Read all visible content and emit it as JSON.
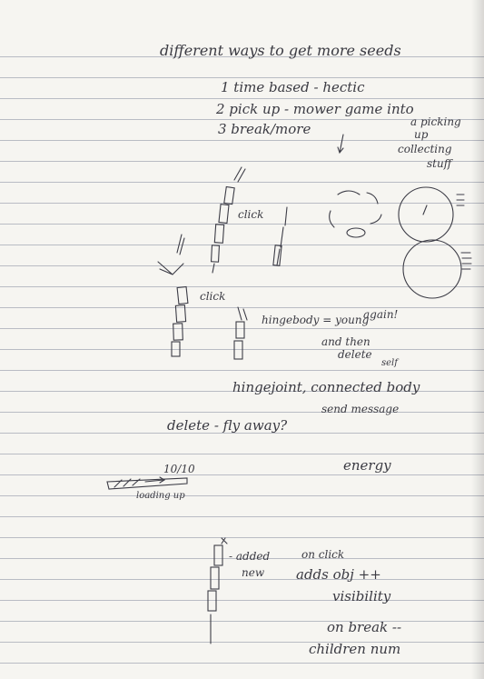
{
  "notes": {
    "title": "different ways to get more seeds",
    "item1": "1 time based - hectic",
    "item2": "2 pick up - mower game into",
    "item2_note": "a picking",
    "item2_note2": "up",
    "item3": "3 break/more",
    "collecting1": "collecting",
    "collecting2": "stuff",
    "click1": "click",
    "click2": "click",
    "hinge1": "hingebody = young",
    "hinge1b": "again!",
    "hinge2": "and then",
    "hinge3": "delete",
    "hinge3b": "self",
    "hinge_joint": "hingejoint, connected body",
    "send_message": "send message",
    "delete_fly": "delete - fly away?",
    "ten": "10/10",
    "loading": "loading up",
    "energy": "energy",
    "added": "- added",
    "new": "new",
    "on_click": "on click",
    "adds": "adds obj ++",
    "visibility": "visibility",
    "on_break": "on break --",
    "children": "children num"
  },
  "ink_color": "#3a3a42"
}
